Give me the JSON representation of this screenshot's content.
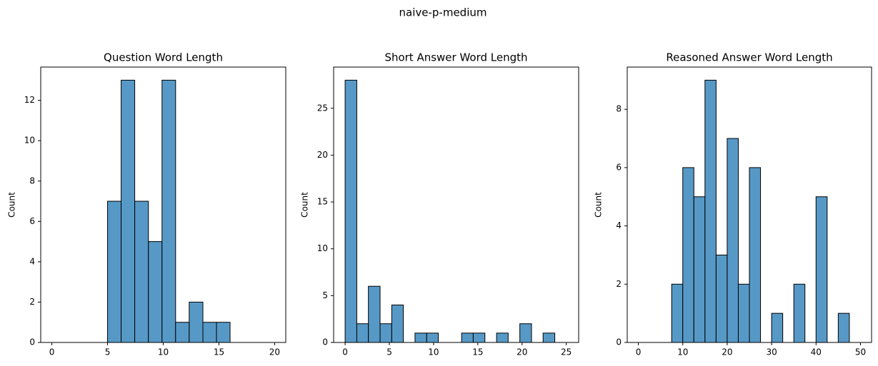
{
  "title": "naive-p-medium",
  "chart_data": [
    {
      "type": "histogram",
      "title": "Question Word Length",
      "ylabel": "Count",
      "color": "#5799c6",
      "bins": [
        5,
        6.22,
        7.44,
        8.67,
        9.89,
        11.11,
        12.33,
        13.56,
        14.78,
        16
      ],
      "values": [
        7,
        13,
        7,
        5,
        13,
        1,
        2,
        1,
        1
      ],
      "xlim": [
        -1,
        21
      ],
      "xticks": [
        0,
        5,
        10,
        15,
        20
      ],
      "ylim": [
        0,
        13.65
      ],
      "yticks": [
        0,
        2,
        4,
        6,
        8,
        10,
        12
      ]
    },
    {
      "type": "histogram",
      "title": "Short Answer Word Length",
      "ylabel": "Count",
      "color": "#5799c6",
      "bins": [
        0,
        1.32,
        2.63,
        3.95,
        5.27,
        6.58,
        7.9,
        9.22,
        10.53,
        11.85,
        13.17,
        14.48,
        15.8,
        17.12,
        18.43,
        19.75,
        21.07,
        22.38,
        23.7
      ],
      "values": [
        28,
        2,
        6,
        2,
        4,
        0,
        1,
        1,
        0,
        0,
        1,
        1,
        0,
        1,
        0,
        2,
        0,
        1
      ],
      "xlim": [
        -1.3,
        26.4
      ],
      "xticks": [
        0,
        5,
        10,
        15,
        20,
        25
      ],
      "ylim": [
        0,
        29.4
      ],
      "yticks": [
        0,
        5,
        10,
        15,
        20,
        25
      ]
    },
    {
      "type": "histogram",
      "title": "Reasoned Answer Word Length",
      "ylabel": "Count",
      "color": "#5799c6",
      "bins": [
        7.5,
        10,
        12.5,
        15,
        17.5,
        20,
        22.5,
        25,
        27.5,
        30,
        32.5,
        35,
        37.5,
        40,
        42.5,
        45,
        47.5
      ],
      "values": [
        2,
        6,
        5,
        9,
        3,
        7,
        2,
        6,
        0,
        1,
        0,
        2,
        0,
        5,
        0,
        1
      ],
      "xlim": [
        -2.5,
        52.5
      ],
      "xticks": [
        0,
        10,
        20,
        30,
        40,
        50
      ],
      "ylim": [
        0,
        9.45
      ],
      "yticks": [
        0,
        2,
        4,
        6,
        8
      ]
    }
  ]
}
